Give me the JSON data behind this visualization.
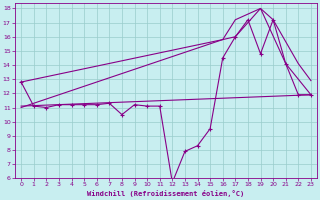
{
  "xlabel": "Windchill (Refroidissement éolien,°C)",
  "bg_color": "#c8eef0",
  "line_color": "#880088",
  "grid_color": "#99cccc",
  "xlim": [
    -0.5,
    23.5
  ],
  "ylim": [
    6,
    18.4
  ],
  "xticks": [
    0,
    1,
    2,
    3,
    4,
    5,
    6,
    7,
    8,
    9,
    10,
    11,
    12,
    13,
    14,
    15,
    16,
    17,
    18,
    19,
    20,
    21,
    22,
    23
  ],
  "yticks": [
    6,
    7,
    8,
    9,
    10,
    11,
    12,
    13,
    14,
    15,
    16,
    17,
    18
  ],
  "main_x": [
    0,
    1,
    2,
    3,
    4,
    5,
    6,
    7,
    8,
    9,
    10,
    11,
    12,
    13,
    14,
    15,
    16,
    17,
    18,
    19,
    20,
    21,
    22,
    23
  ],
  "main_y": [
    12.8,
    11.1,
    11.0,
    11.2,
    11.2,
    11.2,
    11.2,
    11.3,
    10.5,
    11.2,
    11.1,
    11.1,
    5.7,
    7.9,
    8.3,
    9.5,
    14.5,
    16.0,
    17.2,
    14.8,
    17.2,
    14.1,
    11.9,
    11.9
  ],
  "line1_x": [
    0,
    23
  ],
  "line1_y": [
    11.1,
    11.9
  ],
  "line2_x": [
    0,
    16,
    17,
    19,
    20,
    22,
    23
  ],
  "line2_y": [
    11.0,
    15.8,
    17.2,
    18.0,
    17.2,
    14.1,
    12.9
  ],
  "line3_x": [
    0,
    16,
    17,
    19,
    21,
    22,
    23
  ],
  "line3_y": [
    12.8,
    15.8,
    16.0,
    18.0,
    14.1,
    13.0,
    11.9
  ]
}
